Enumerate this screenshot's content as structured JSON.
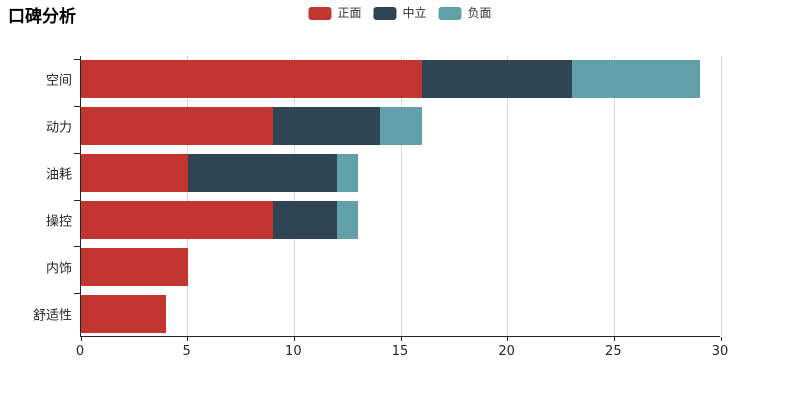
{
  "title": "口碑分析",
  "legend": {
    "items": [
      {
        "label": "正面",
        "color": "#c23531"
      },
      {
        "label": "中立",
        "color": "#2f4554"
      },
      {
        "label": "负面",
        "color": "#61a0a8"
      }
    ]
  },
  "chart_data": {
    "type": "bar",
    "orientation": "horizontal",
    "stacked": true,
    "title": "口碑分析",
    "categories": [
      "空间",
      "动力",
      "油耗",
      "操控",
      "内饰",
      "舒适性"
    ],
    "series": [
      {
        "name": "正面",
        "color": "#c23531",
        "values": [
          16,
          9,
          5,
          9,
          5,
          4
        ]
      },
      {
        "name": "中立",
        "color": "#2f4554",
        "values": [
          7,
          5,
          7,
          3,
          0,
          0
        ]
      },
      {
        "name": "负面",
        "color": "#61a0a8",
        "values": [
          6,
          2,
          1,
          1,
          0,
          0
        ]
      }
    ],
    "totals": [
      29,
      16,
      13,
      13,
      5,
      4
    ],
    "xlim": [
      0,
      30
    ],
    "x_ticks": [
      0,
      5,
      10,
      15,
      20,
      25,
      30
    ],
    "grid": true,
    "legend_position": "top-center",
    "colors": {
      "axis": "#262626",
      "grid": "#d9d9d9",
      "label": "#262626",
      "background": "#ffffff"
    }
  }
}
